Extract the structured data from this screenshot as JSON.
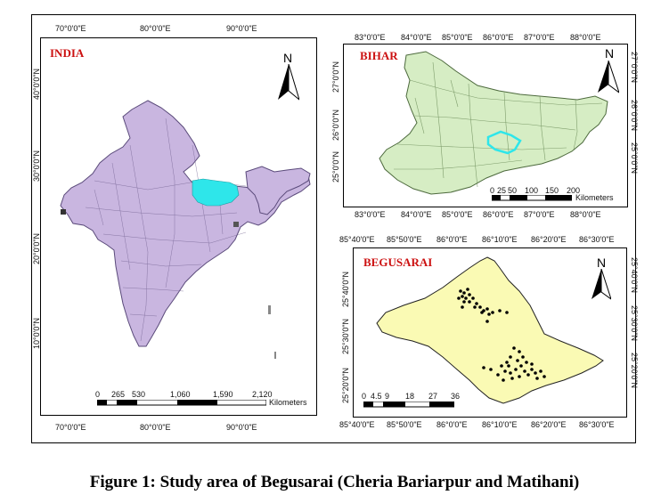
{
  "caption": "Figure 1: Study area of Begusarai (Cheria Bariarpur and Matihani)",
  "colors": {
    "india_fill": "#c9b6e0",
    "bihar_fill": "#d6edc4",
    "begusarai_fill": "#fafab4",
    "highlight": "#2ee6ea",
    "points": "#000000",
    "title_red": "#cc1111"
  },
  "india": {
    "title": "INDIA",
    "north": "N",
    "top_labels": [
      "70°0'0\"E",
      "80°0'0\"E",
      "90°0'0\"E"
    ],
    "bottom_labels": [
      "70°0'0\"E",
      "80°0'0\"E",
      "90°0'0\"E"
    ],
    "left_labels": [
      "40°0'0\"N",
      "30°0'0\"N",
      "20°0'0\"N",
      "10°0'0\"N"
    ],
    "scale_ticks": [
      "0",
      "265",
      "530",
      "1,060",
      "1,590",
      "2,120"
    ],
    "scale_unit": "Kilometers"
  },
  "bihar": {
    "title": "BIHAR",
    "north": "N",
    "top_labels": [
      "83°0'0\"E",
      "84°0'0\"E",
      "85°0'0\"E",
      "86°0'0\"E",
      "87°0'0\"E",
      "88°0'0\"E"
    ],
    "bottom_labels": [
      "83°0'0\"E",
      "84°0'0\"E",
      "85°0'0\"E",
      "86°0'0\"E",
      "87°0'0\"E",
      "88°0'0\"E"
    ],
    "left_labels": [
      "27°0'0\"N",
      "26°0'0\"N",
      "25°0'0\"N"
    ],
    "right_labels": [
      "27°0'0\"N",
      "26°0'0\"N",
      "25°0'0\"N"
    ],
    "scale_ticks": [
      "0",
      "25",
      "50",
      "100",
      "150",
      "200"
    ],
    "scale_unit": "Kilometers"
  },
  "begusarai": {
    "title": "BEGUSARAI",
    "north": "N",
    "top_labels": [
      "85°40'0\"E",
      "85°50'0\"E",
      "86°0'0\"E",
      "86°10'0\"E",
      "86°20'0\"E",
      "86°30'0\"E"
    ],
    "bottom_labels": [
      "85°40'0\"E",
      "85°50'0\"E",
      "86°0'0\"E",
      "86°10'0\"E",
      "86°20'0\"E",
      "86°30'0\"E"
    ],
    "left_labels": [
      "25°40'0\"N",
      "25°30'0\"N",
      "25°20'0\"N"
    ],
    "right_labels": [
      "25°40'0\"N",
      "25°30'0\"N",
      "25°20'0\"N"
    ],
    "scale_ticks": [
      "0",
      "4.5",
      "9",
      "18",
      "27",
      "36"
    ],
    "scale_unit": "Kilometers"
  }
}
